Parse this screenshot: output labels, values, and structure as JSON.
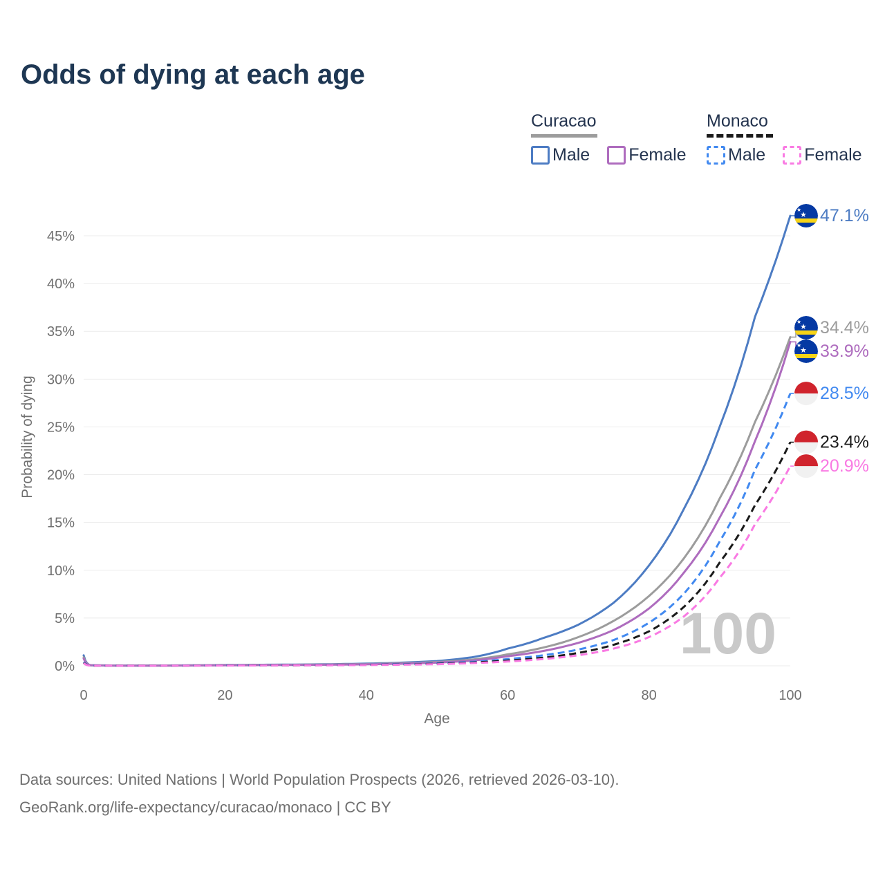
{
  "title": "Odds of dying at each age",
  "legend": {
    "groups": [
      {
        "id": "curacao",
        "label": "Curacao",
        "series_id": "curacao-both",
        "items": [
          {
            "label": "Male",
            "series_id": "curacao-male"
          },
          {
            "label": "Female",
            "series_id": "curacao-female"
          }
        ]
      },
      {
        "id": "monaco",
        "label": "Monaco",
        "series_id": "monaco-both",
        "items": [
          {
            "label": "Male",
            "series_id": "monaco-male"
          },
          {
            "label": "Female",
            "series_id": "monaco-female"
          }
        ]
      }
    ]
  },
  "footer": {
    "line1": "Data sources: United Nations | World Population Prospects (2026, retrieved 2026-03-10).",
    "line2": "GeoRank.org/life-expectancy/curacao/monaco | CC BY"
  },
  "colors": {
    "title_text": "#1e3753",
    "legend_text": "#24344f",
    "muted_text": "#6f6f6f",
    "gridline": "#ebebeb",
    "watermark": "#c9c9c9",
    "curacao_flag_blue": "#0539a3",
    "curacao_flag_yellow": "#f7d417",
    "monaco_flag_red": "#d0242d",
    "monaco_flag_white": "#f1f1f1"
  },
  "chart_data": {
    "type": "line",
    "xlabel": "Age",
    "ylabel": "Probability of dying",
    "age_indicator": "100",
    "xlim": [
      0,
      100
    ],
    "ylim": [
      0,
      48
    ],
    "x_ticks": [
      0,
      20,
      40,
      60,
      80,
      100
    ],
    "y_ticks": [
      "0%",
      "5%",
      "10%",
      "15%",
      "20%",
      "25%",
      "30%",
      "35%",
      "40%",
      "45%"
    ],
    "grid": "horizontal",
    "legend_position": "top-right",
    "series": [
      {
        "id": "curacao-male",
        "name": "Curacao Male",
        "country": "Curacao",
        "sex": "Male",
        "line_style": "solid",
        "color": "#4d7cc3",
        "flag": "curacao",
        "end_value": 47.1,
        "end_label": "47.1%",
        "points": [
          [
            0,
            1.1
          ],
          [
            1,
            0.06
          ],
          [
            5,
            0.03
          ],
          [
            10,
            0.03
          ],
          [
            15,
            0.05
          ],
          [
            20,
            0.09
          ],
          [
            25,
            0.11
          ],
          [
            30,
            0.13
          ],
          [
            35,
            0.17
          ],
          [
            40,
            0.23
          ],
          [
            45,
            0.33
          ],
          [
            50,
            0.5
          ],
          [
            55,
            0.9
          ],
          [
            60,
            1.8
          ],
          [
            65,
            2.9
          ],
          [
            70,
            4.3
          ],
          [
            75,
            6.6
          ],
          [
            80,
            10.5
          ],
          [
            85,
            16.5
          ],
          [
            90,
            25.0
          ],
          [
            95,
            36.5
          ],
          [
            100,
            47.1
          ]
        ]
      },
      {
        "id": "curacao-both",
        "name": "Curacao",
        "country": "Curacao",
        "sex": "Both",
        "line_style": "solid",
        "color": "#9c9c9c",
        "flag": "curacao",
        "end_value": 34.4,
        "end_label": "34.4%",
        "points": [
          [
            0,
            0.9
          ],
          [
            1,
            0.05
          ],
          [
            5,
            0.025
          ],
          [
            10,
            0.025
          ],
          [
            15,
            0.04
          ],
          [
            20,
            0.07
          ],
          [
            25,
            0.09
          ],
          [
            30,
            0.11
          ],
          [
            35,
            0.14
          ],
          [
            40,
            0.19
          ],
          [
            45,
            0.27
          ],
          [
            50,
            0.4
          ],
          [
            55,
            0.65
          ],
          [
            60,
            1.2
          ],
          [
            65,
            1.9
          ],
          [
            70,
            3.0
          ],
          [
            75,
            4.7
          ],
          [
            80,
            7.3
          ],
          [
            85,
            11.3
          ],
          [
            90,
            17.5
          ],
          [
            95,
            25.5
          ],
          [
            100,
            34.4
          ]
        ]
      },
      {
        "id": "curacao-female",
        "name": "Curacao Female",
        "country": "Curacao",
        "sex": "Female",
        "line_style": "solid",
        "color": "#ae6cbe",
        "flag": "curacao",
        "end_value": 33.9,
        "end_label": "33.9%",
        "points": [
          [
            0,
            0.75
          ],
          [
            1,
            0.05
          ],
          [
            5,
            0.02
          ],
          [
            10,
            0.02
          ],
          [
            15,
            0.03
          ],
          [
            20,
            0.05
          ],
          [
            25,
            0.07
          ],
          [
            30,
            0.09
          ],
          [
            35,
            0.12
          ],
          [
            40,
            0.16
          ],
          [
            45,
            0.22
          ],
          [
            50,
            0.33
          ],
          [
            55,
            0.55
          ],
          [
            60,
            1.0
          ],
          [
            65,
            1.55
          ],
          [
            70,
            2.4
          ],
          [
            75,
            3.75
          ],
          [
            80,
            6.0
          ],
          [
            85,
            9.8
          ],
          [
            90,
            15.5
          ],
          [
            95,
            23.5
          ],
          [
            100,
            33.9
          ]
        ]
      },
      {
        "id": "monaco-male",
        "name": "Monaco Male",
        "country": "Monaco",
        "sex": "Male",
        "line_style": "dashed",
        "color": "#4189f0",
        "flag": "monaco",
        "end_value": 28.5,
        "end_label": "28.5%",
        "points": [
          [
            0,
            0.4
          ],
          [
            1,
            0.03
          ],
          [
            5,
            0.015
          ],
          [
            10,
            0.015
          ],
          [
            15,
            0.03
          ],
          [
            20,
            0.05
          ],
          [
            25,
            0.06
          ],
          [
            30,
            0.07
          ],
          [
            35,
            0.09
          ],
          [
            40,
            0.12
          ],
          [
            45,
            0.17
          ],
          [
            50,
            0.26
          ],
          [
            55,
            0.42
          ],
          [
            60,
            0.7
          ],
          [
            65,
            1.1
          ],
          [
            70,
            1.7
          ],
          [
            75,
            2.7
          ],
          [
            80,
            4.5
          ],
          [
            85,
            7.6
          ],
          [
            90,
            13.0
          ],
          [
            95,
            20.5
          ],
          [
            100,
            28.5
          ]
        ]
      },
      {
        "id": "monaco-both",
        "name": "Monaco",
        "country": "Monaco",
        "sex": "Both",
        "line_style": "dashed",
        "color": "#1a1a1a",
        "flag": "monaco",
        "end_value": 23.4,
        "end_label": "23.4%",
        "points": [
          [
            0,
            0.33
          ],
          [
            1,
            0.025
          ],
          [
            5,
            0.012
          ],
          [
            10,
            0.012
          ],
          [
            15,
            0.025
          ],
          [
            20,
            0.04
          ],
          [
            25,
            0.05
          ],
          [
            30,
            0.06
          ],
          [
            35,
            0.075
          ],
          [
            40,
            0.1
          ],
          [
            45,
            0.14
          ],
          [
            50,
            0.21
          ],
          [
            55,
            0.34
          ],
          [
            60,
            0.55
          ],
          [
            65,
            0.85
          ],
          [
            70,
            1.35
          ],
          [
            75,
            2.2
          ],
          [
            80,
            3.6
          ],
          [
            85,
            6.2
          ],
          [
            90,
            10.8
          ],
          [
            95,
            16.8
          ],
          [
            100,
            23.4
          ]
        ]
      },
      {
        "id": "monaco-female",
        "name": "Monaco Female",
        "country": "Monaco",
        "sex": "Female",
        "line_style": "dashed",
        "color": "#f97ae3",
        "flag": "monaco",
        "end_value": 20.9,
        "end_label": "20.9%",
        "points": [
          [
            0,
            0.28
          ],
          [
            1,
            0.02
          ],
          [
            5,
            0.01
          ],
          [
            10,
            0.01
          ],
          [
            15,
            0.02
          ],
          [
            20,
            0.03
          ],
          [
            25,
            0.04
          ],
          [
            30,
            0.05
          ],
          [
            35,
            0.06
          ],
          [
            40,
            0.08
          ],
          [
            45,
            0.12
          ],
          [
            50,
            0.17
          ],
          [
            55,
            0.28
          ],
          [
            60,
            0.45
          ],
          [
            65,
            0.7
          ],
          [
            70,
            1.1
          ],
          [
            75,
            1.8
          ],
          [
            80,
            3.0
          ],
          [
            85,
            5.2
          ],
          [
            90,
            9.2
          ],
          [
            95,
            14.8
          ],
          [
            100,
            20.9
          ]
        ]
      }
    ]
  }
}
